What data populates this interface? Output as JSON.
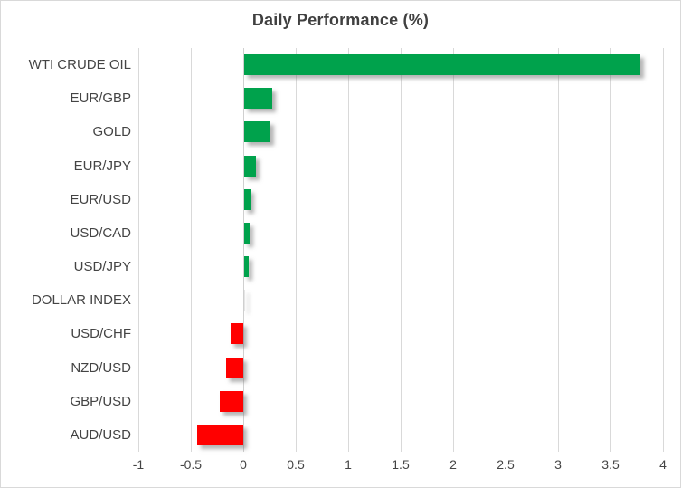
{
  "chart_data": {
    "type": "bar",
    "orientation": "horizontal",
    "title": "Daily Performance (%)",
    "categories": [
      "WTI CRUDE OIL",
      "EUR/GBP",
      "GOLD",
      "EUR/JPY",
      "EUR/USD",
      "USD/CAD",
      "USD/JPY",
      "DOLLAR INDEX",
      "USD/CHF",
      "NZD/USD",
      "GBP/USD",
      "AUD/USD"
    ],
    "values": [
      3.78,
      0.27,
      0.25,
      0.11,
      0.06,
      0.05,
      0.04,
      0.0,
      -0.12,
      -0.16,
      -0.22,
      -0.44
    ],
    "xlabel": "",
    "ylabel": "",
    "xlim": [
      -1,
      4
    ],
    "xticks": [
      -1,
      -0.5,
      0,
      0.5,
      1,
      1.5,
      2,
      2.5,
      3,
      3.5,
      4
    ],
    "xtick_labels": [
      "-1",
      "-0.5",
      "0",
      "0.5",
      "1",
      "1.5",
      "2",
      "2.5",
      "3",
      "3.5",
      "4"
    ],
    "grid": "vertical-gridlines-on",
    "legend": "none",
    "colors": {
      "positive_bar": "#00A24C",
      "negative_bar": "#FF0000",
      "gridline": "#D9D9D9",
      "title_text": "#404040",
      "label_text": "#444444",
      "background": "#FFFFFF",
      "chart_border": "#D9D9D9"
    }
  }
}
